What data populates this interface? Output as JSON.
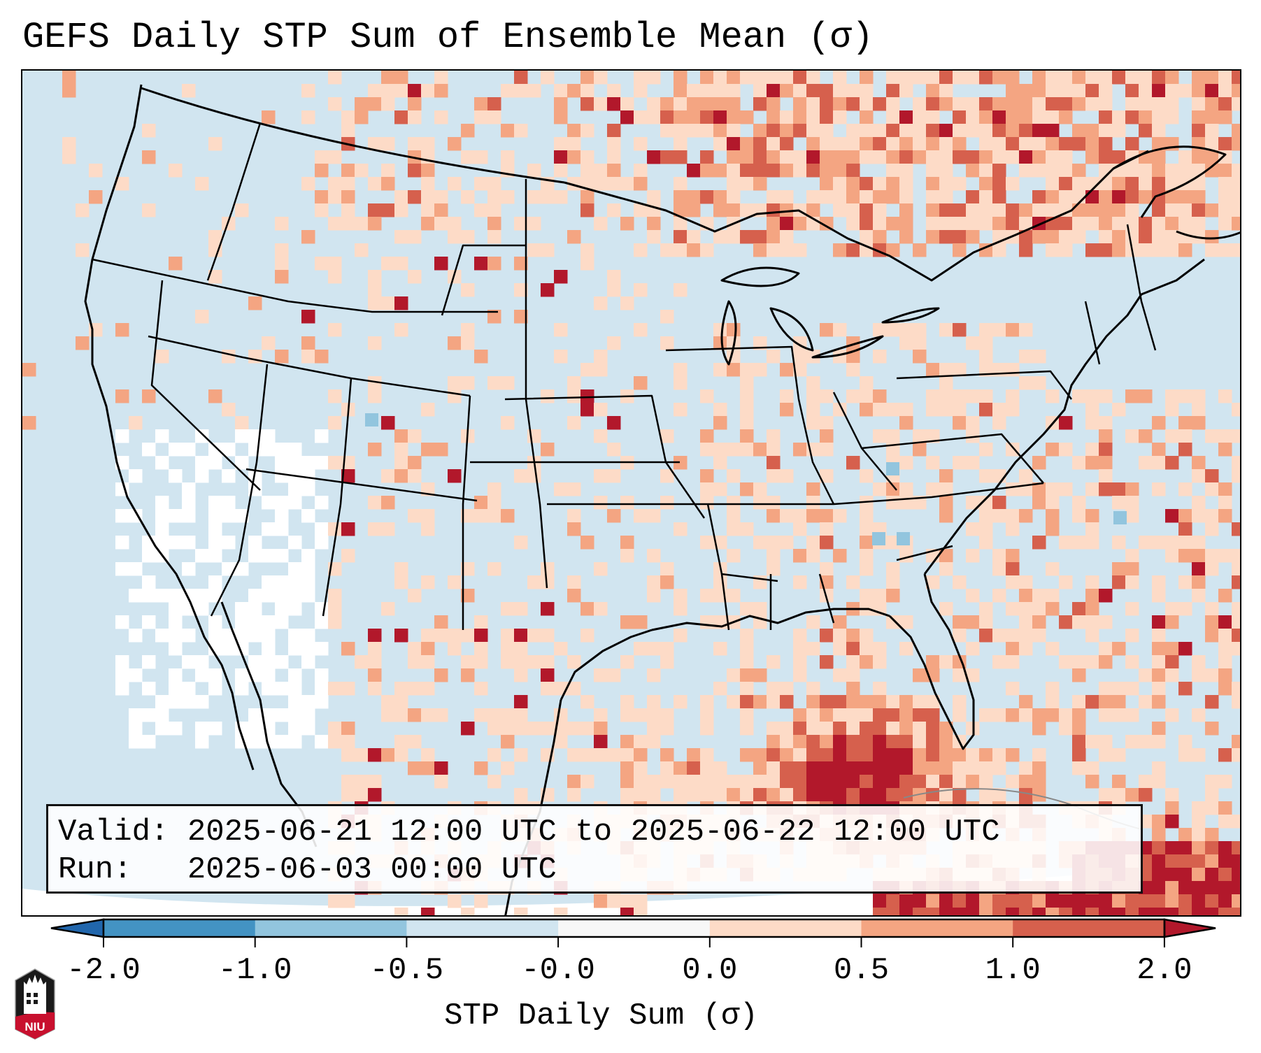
{
  "title": "GEFS Daily STP Sum of Ensemble Mean (σ)",
  "info_box": {
    "valid_line": "Valid: 2025-06-21 12:00 UTC to 2025-06-22 12:00 UTC",
    "run_line": "Run:   2025-06-03 00:00 UTC"
  },
  "colorbar": {
    "label": "STP Daily Sum (σ)",
    "tick_labels": [
      "-2.0",
      "-1.0",
      "-0.5",
      "-0.0",
      "0.0",
      "0.5",
      "1.0",
      "2.0"
    ],
    "bins": [
      {
        "range": "< -2.0",
        "color": "#2166ac"
      },
      {
        "range": "-2.0 to -1.0",
        "color": "#4393c3"
      },
      {
        "range": "-1.0 to -0.5",
        "color": "#92c5de"
      },
      {
        "range": "-0.5 to -0.0",
        "color": "#d1e5f0"
      },
      {
        "range": "-0.0 to 0.0",
        "color": "#f7f7f7"
      },
      {
        "range": "0.0 to 0.5",
        "color": "#fddbc7"
      },
      {
        "range": "0.5 to 1.0",
        "color": "#f4a582"
      },
      {
        "range": "1.0 to 2.0",
        "color": "#d6604d"
      },
      {
        "range": "> 2.0",
        "color": "#b2182b"
      }
    ],
    "extend": "both"
  },
  "map": {
    "region": "Continental United States, southern Canada, northern Mexico, Gulf of Mexico, western Atlantic",
    "background_color": "#d1e5f0",
    "no_data_color": "#ffffff",
    "border_color": "#000000"
  },
  "logo": {
    "text": "NIU",
    "name": "Northern Illinois University logo"
  }
}
